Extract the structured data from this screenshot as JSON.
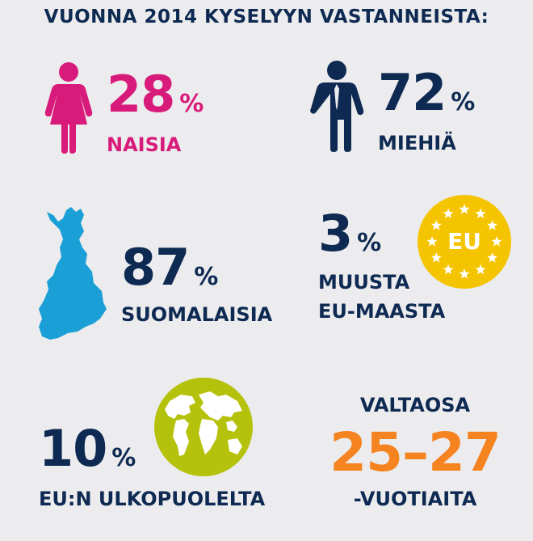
{
  "title": "VUONNA 2014 KYSELYYN VASTANNEISTA:",
  "women": {
    "value": "28",
    "unit": "%",
    "label": "NAISIA",
    "color": "#d81b7a",
    "icon": "woman-icon"
  },
  "men": {
    "value": "72",
    "unit": "%",
    "label": "MIEHIÄ",
    "color": "#0e2a52",
    "icon": "man-icon"
  },
  "finnish": {
    "value": "87",
    "unit": "%",
    "label": "SUOMALAISIA",
    "color": "#1a9fd6",
    "icon": "finland-map-icon"
  },
  "eu": {
    "value": "3",
    "unit": "%",
    "label_line1": "MUUSTA",
    "label_line2": "EU-MAASTA",
    "badge_text": "EU",
    "color": "#f5c400",
    "icon": "eu-flag-icon"
  },
  "non_eu": {
    "value": "10",
    "unit": "%",
    "label": "EU:N ULKOPUOLELTA",
    "color": "#b5c20c",
    "icon": "globe-icon"
  },
  "age": {
    "top_label": "VALTAOSA",
    "range": "25–27",
    "bottom_label": "-VUOTIAITA",
    "color": "#f5831f"
  }
}
